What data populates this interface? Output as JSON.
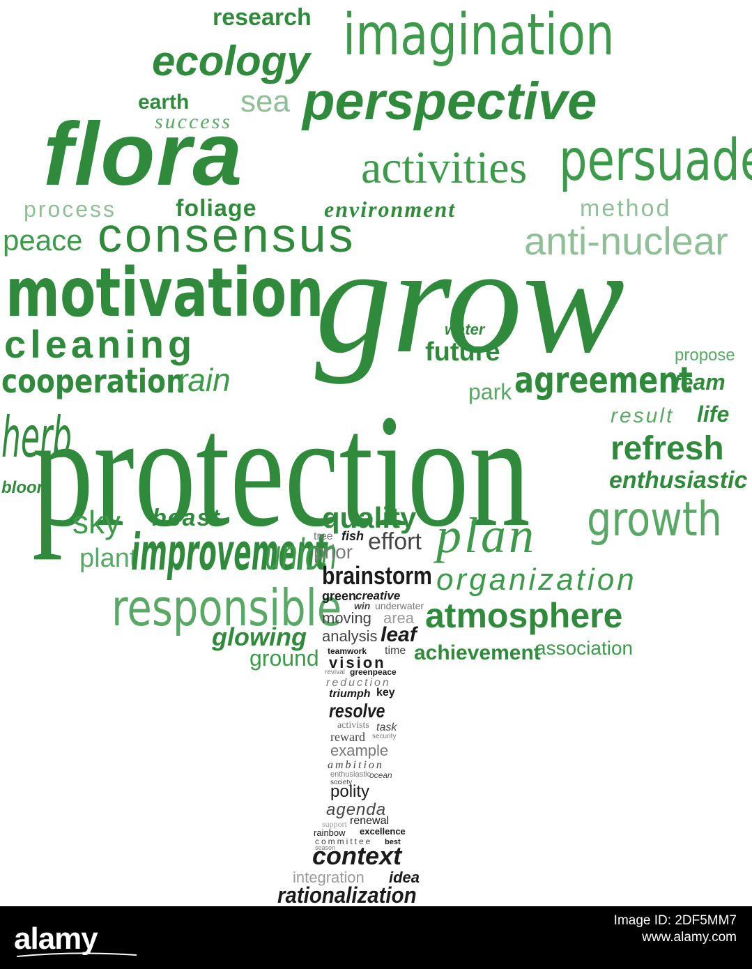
{
  "words": {
    "research": "research",
    "imagination": "imagination",
    "ecology": "ecology",
    "earth": "earth",
    "sea": "sea",
    "perspective": "perspective",
    "success": "success",
    "flora": "flora",
    "activities": "activities",
    "persuade": "persuade",
    "process": "process",
    "foliage": "foliage",
    "environment": "environment",
    "method": "method",
    "peace": "peace",
    "consensus": "consensus",
    "anti_nuclear": "anti-nuclear",
    "motivation": "motivation",
    "grow": "grow",
    "cleaning": "cleaning",
    "water": "water",
    "future": "future",
    "propose": "propose",
    "cooperation": "cooperation",
    "rain": "rain",
    "park": "park",
    "agreement": "agreement",
    "team": "team",
    "herb": "herb",
    "protection": "protection",
    "result": "result",
    "life": "life",
    "refresh": "refresh",
    "bloom": "bloom",
    "enthusiastic_green": "enthusiastic",
    "sky": "sky",
    "beast": "beast",
    "quality": "quality",
    "growth": "growth",
    "plant": "plant",
    "improvement": "improvement",
    "union": "union",
    "tree": "tree",
    "fish": "fish",
    "effort": "effort",
    "prior": "prior",
    "plan": "plan",
    "brainstorm": "brainstorm",
    "organization": "organization",
    "green": "green",
    "creative": "creative",
    "win": "win",
    "underwater": "underwater",
    "responsible": "responsible",
    "moving": "moving",
    "area": "area",
    "atmosphere": "atmosphere",
    "glowing": "glowing",
    "analysis": "analysis",
    "leaf": "leaf",
    "teamwork": "teamwork",
    "time": "time",
    "achievement": "achievement",
    "association": "association",
    "ground": "ground",
    "vision": "vision",
    "revival": "revival",
    "greenpeace": "greenpeace",
    "reduction": "reduction",
    "triumph": "triumph",
    "key": "key",
    "resolve": "resolve",
    "activists": "activists",
    "task": "task",
    "reward": "reward",
    "security": "security",
    "example": "example",
    "ambition": "ambition",
    "enthusiastic_black": "enthusiastic",
    "ocean": "ocean",
    "society": "society",
    "polity": "polity",
    "agenda": "agenda",
    "support": "support",
    "renewal": "renewal",
    "rainbow": "rainbow",
    "excellence": "excellence",
    "committee": "committee",
    "season": "season",
    "best": "best",
    "context": "context",
    "integration": "integration",
    "idea": "idea",
    "rationalization": "rationalization"
  },
  "footer": {
    "logo": "alamy",
    "image_id_label": "Image ID: 2DF5MM7",
    "site": "www.alamy.com"
  },
  "colors": {
    "primary_green": "#2e8b3d",
    "trunk_black": "#1a1a1a",
    "footer_bg": "#000000"
  }
}
